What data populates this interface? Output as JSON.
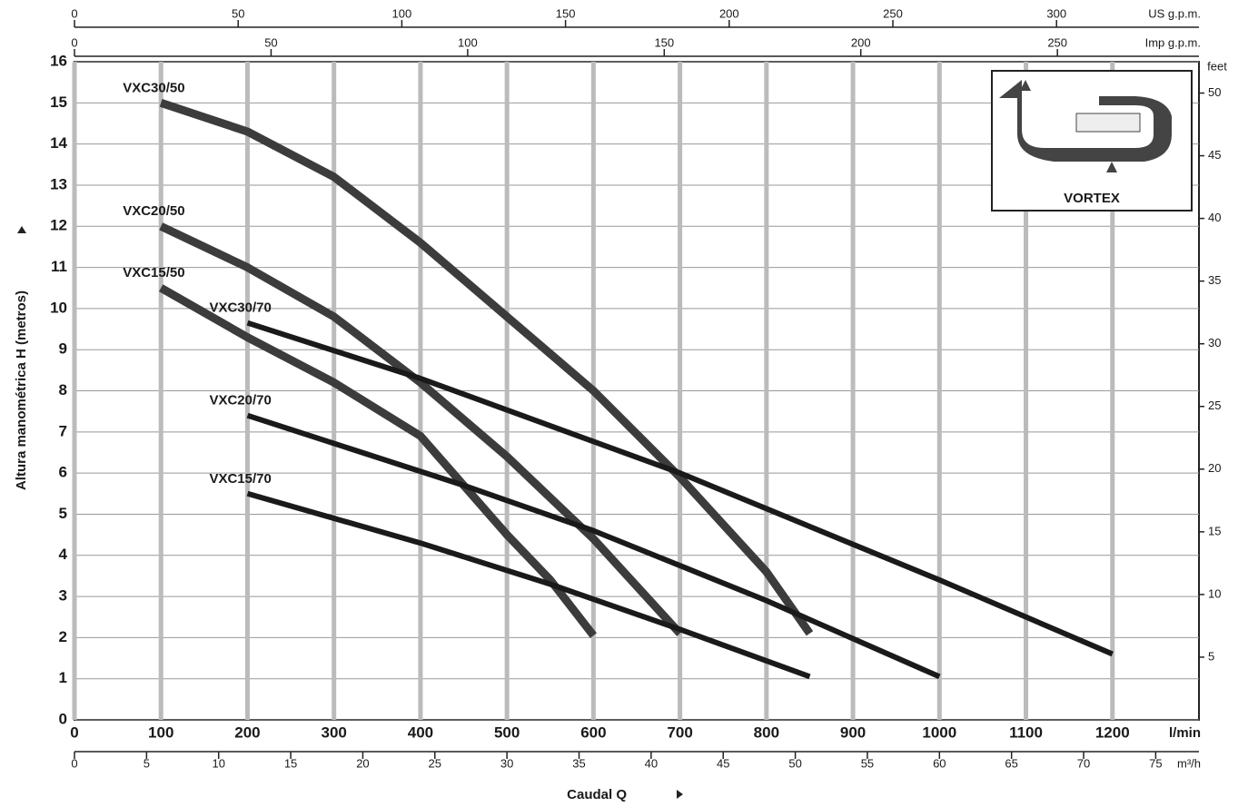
{
  "chart_data": {
    "type": "line",
    "xlabel": "Caudal Q",
    "xunit": "l/min",
    "ylabel": "Altura manométrica H (metros)",
    "xlim": [
      0,
      1300
    ],
    "xticks": [
      0,
      100,
      200,
      300,
      400,
      500,
      600,
      700,
      800,
      900,
      1000,
      1100,
      1200
    ],
    "ylim": [
      0,
      16
    ],
    "yticks": [
      0,
      1,
      2,
      3,
      4,
      5,
      6,
      7,
      8,
      9,
      10,
      11,
      12,
      13,
      14,
      15,
      16
    ],
    "grid": true,
    "secondary_axes": [
      {
        "position": "top",
        "unit": "US g.p.m.",
        "lim": [
          0,
          343.5
        ],
        "ticks": [
          0,
          50,
          100,
          150,
          200,
          250,
          300
        ]
      },
      {
        "position": "top",
        "unit": "Imp g.p.m.",
        "lim": [
          0,
          286
        ],
        "ticks": [
          0,
          50,
          100,
          150,
          200,
          250
        ]
      },
      {
        "position": "bottom",
        "unit": "m³/h",
        "lim": [
          0,
          78
        ],
        "ticks": [
          0,
          5,
          10,
          15,
          20,
          25,
          30,
          35,
          40,
          45,
          50,
          55,
          60,
          65,
          70,
          75
        ]
      },
      {
        "position": "right",
        "unit": "feet",
        "lim": [
          0,
          52.5
        ],
        "ticks": [
          5,
          10,
          15,
          20,
          25,
          30,
          35,
          40,
          45,
          50
        ]
      }
    ],
    "series": [
      {
        "name": "VXC30/50",
        "color": "#3c3c3c",
        "line_width": 9,
        "x": [
          100,
          200,
          300,
          400,
          500,
          600,
          700,
          800,
          850
        ],
        "values": [
          15,
          14.3,
          13.2,
          11.6,
          9.8,
          8.0,
          5.9,
          3.6,
          2.1
        ]
      },
      {
        "name": "VXC20/50",
        "color": "#3c3c3c",
        "line_width": 9,
        "x": [
          100,
          200,
          300,
          400,
          500,
          600,
          700
        ],
        "values": [
          12,
          11,
          9.8,
          8.2,
          6.4,
          4.4,
          2.1
        ]
      },
      {
        "name": "VXC15/50",
        "color": "#3c3c3c",
        "line_width": 9,
        "x": [
          100,
          200,
          300,
          400,
          450,
          500,
          550,
          600
        ],
        "values": [
          10.5,
          9.3,
          8.2,
          6.9,
          5.7,
          4.5,
          3.4,
          2.05
        ]
      },
      {
        "name": "VXC30/70",
        "color": "#1a1a1a",
        "line_width": 6,
        "x": [
          200,
          400,
          700,
          1000,
          1200
        ],
        "values": [
          9.65,
          8.3,
          6.0,
          3.4,
          1.6
        ]
      },
      {
        "name": "VXC20/70",
        "color": "#1a1a1a",
        "line_width": 6,
        "x": [
          200,
          450,
          600,
          800,
          1000
        ],
        "values": [
          7.4,
          5.7,
          4.6,
          2.9,
          1.05
        ]
      },
      {
        "name": "VXC15/70",
        "color": "#1a1a1a",
        "line_width": 6,
        "x": [
          200,
          400,
          550,
          700,
          850
        ],
        "values": [
          5.5,
          4.3,
          3.3,
          2.2,
          1.05
        ]
      }
    ],
    "inset_label": "VORTEX"
  }
}
